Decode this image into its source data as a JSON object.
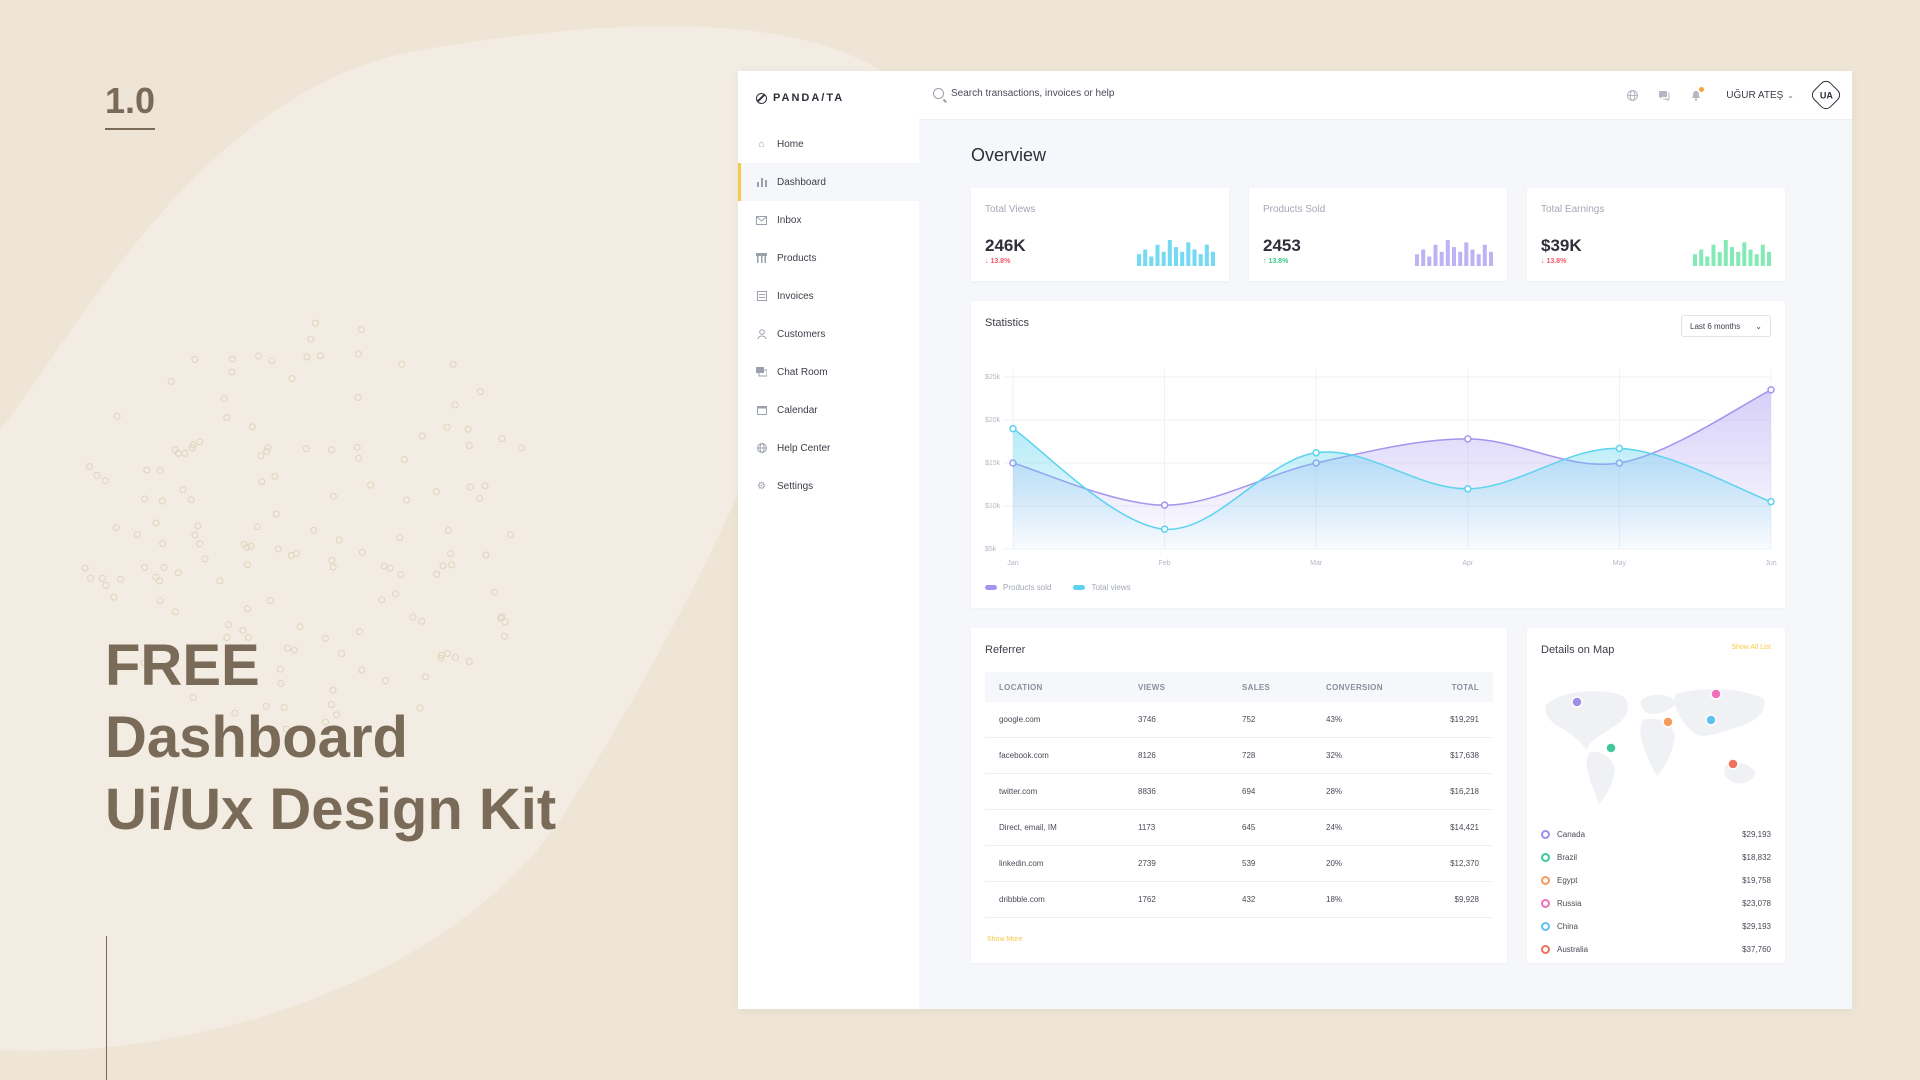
{
  "promo": {
    "version": "1.0",
    "headline": [
      "FREE",
      "Dashboard",
      "Ui/Ux Design Kit"
    ]
  },
  "brand": {
    "name": "PANDA/TA"
  },
  "sidebar": {
    "items": [
      {
        "label": "Home",
        "icon": "home-icon"
      },
      {
        "label": "Dashboard",
        "icon": "bar-chart-icon",
        "active": true
      },
      {
        "label": "Inbox",
        "icon": "mail-icon"
      },
      {
        "label": "Products",
        "icon": "products-icon"
      },
      {
        "label": "Invoices",
        "icon": "invoice-icon"
      },
      {
        "label": "Customers",
        "icon": "user-icon"
      },
      {
        "label": "Chat Room",
        "icon": "chat-icon"
      },
      {
        "label": "Calendar",
        "icon": "calendar-icon"
      },
      {
        "label": "Help Center",
        "icon": "globe-icon"
      },
      {
        "label": "Settings",
        "icon": "gear-icon"
      }
    ]
  },
  "topbar": {
    "search_placeholder": "Search transactions, invoices or help",
    "user_name": "UĞUR ATEŞ",
    "avatar_text": "UA"
  },
  "overview": {
    "title": "Overview",
    "kpis": [
      {
        "label": "Total Views",
        "value": "246K",
        "change": "13.8%",
        "direction": "down",
        "color": "#5bd3ee",
        "spark": [
          5,
          7,
          4,
          9,
          6,
          11,
          8,
          6,
          10,
          7,
          5,
          9,
          6
        ]
      },
      {
        "label": "Products Sold",
        "value": "2453",
        "change": "13.8%",
        "direction": "up",
        "color": "#b2a4f2",
        "spark": [
          5,
          7,
          4,
          9,
          6,
          11,
          8,
          6,
          10,
          7,
          5,
          9,
          6
        ]
      },
      {
        "label": "Total Earnings",
        "value": "$39K",
        "change": "13.8%",
        "direction": "down",
        "color": "#6ee6a8",
        "spark": [
          5,
          7,
          4,
          9,
          6,
          11,
          8,
          6,
          10,
          7,
          5,
          9,
          6
        ]
      }
    ]
  },
  "statistics": {
    "title": "Statistics",
    "range_label": "Last 6 months"
  },
  "chart_data": {
    "type": "area",
    "categories": [
      "Jan",
      "Feb",
      "Mar",
      "Apr",
      "May",
      "Jun"
    ],
    "y_ticks": [
      "$5k",
      "$10k",
      "$15k",
      "$20k",
      "$25k"
    ],
    "ylim": [
      5,
      25
    ],
    "series": [
      {
        "name": "Products sold",
        "color": "#a594f0",
        "values": [
          15,
          10.1,
          15,
          17.8,
          15,
          23.5
        ]
      },
      {
        "name": "Total views",
        "color": "#5bd3ee",
        "values": [
          19,
          7.3,
          16.2,
          12,
          16.7,
          10.5
        ]
      }
    ],
    "legend_position": "bottom-left",
    "grid": true
  },
  "referrer": {
    "title": "Referrer",
    "columns": [
      "LOCATION",
      "VIEWS",
      "SALES",
      "CONVERSION",
      "TOTAL"
    ],
    "rows": [
      [
        "google.com",
        "3746",
        "752",
        "43%",
        "$19,291"
      ],
      [
        "facebook.com",
        "8126",
        "728",
        "32%",
        "$17,638"
      ],
      [
        "twitter.com",
        "8836",
        "694",
        "28%",
        "$16,218"
      ],
      [
        "Direct, email, IM",
        "1173",
        "645",
        "24%",
        "$14,421"
      ],
      [
        "linkedin.com",
        "2739",
        "539",
        "20%",
        "$12,370"
      ],
      [
        "dribbble.com",
        "1762",
        "432",
        "18%",
        "$9,928"
      ]
    ],
    "show_more": "Show More"
  },
  "map": {
    "title": "Details on Map",
    "link": "Show All List",
    "countries": [
      {
        "name": "Canada",
        "value": "$29,193",
        "color": "#9d8fe8"
      },
      {
        "name": "Brazil",
        "value": "$18,832",
        "color": "#3dc99a"
      },
      {
        "name": "Egypt",
        "value": "$19,758",
        "color": "#f59b5b"
      },
      {
        "name": "Russia",
        "value": "$23,078",
        "color": "#f06fb9"
      },
      {
        "name": "China",
        "value": "$29,193",
        "color": "#5bc4ee"
      },
      {
        "name": "Australia",
        "value": "$37,760",
        "color": "#f26f5e"
      }
    ]
  }
}
